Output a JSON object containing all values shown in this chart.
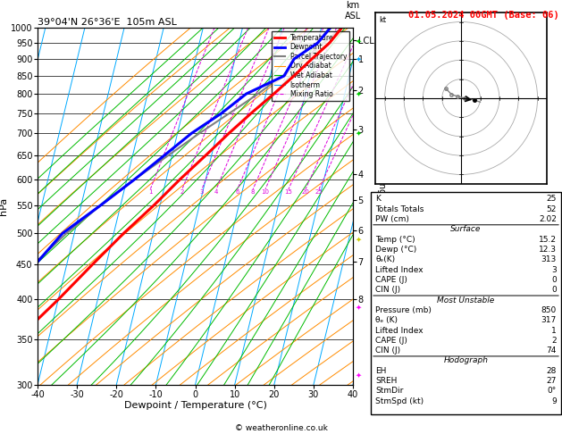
{
  "title_left": "39°04'N 26°36'E  105m ASL",
  "title_right": "01.05.2024 00GMT (Base: 06)",
  "xlabel": "Dewpoint / Temperature (°C)",
  "pressure_levels": [
    300,
    350,
    400,
    450,
    500,
    550,
    600,
    650,
    700,
    750,
    800,
    850,
    900,
    950,
    1000
  ],
  "temp_data": {
    "pressure": [
      1000,
      950,
      900,
      850,
      800,
      750,
      700,
      650,
      600,
      550,
      500,
      450,
      400,
      350,
      300
    ],
    "temperature": [
      15.2,
      13.0,
      9.5,
      6.0,
      2.0,
      -2.5,
      -7.0,
      -11.5,
      -16.5,
      -21.5,
      -27.5,
      -33.5,
      -40.0,
      -48.0,
      -53.0
    ]
  },
  "dewp_data": {
    "pressure": [
      1000,
      950,
      900,
      850,
      800,
      750,
      700,
      650,
      600,
      550,
      500,
      450,
      400,
      350,
      300
    ],
    "dewpoint": [
      12.3,
      10.0,
      5.0,
      3.5,
      -5.0,
      -10.0,
      -16.5,
      -22.0,
      -28.0,
      -35.0,
      -43.0,
      -48.0,
      -53.0,
      -53.0,
      -53.0
    ]
  },
  "parcel_data": {
    "pressure": [
      1000,
      950,
      900,
      850,
      800,
      750,
      700,
      650,
      600,
      550,
      500,
      450,
      400,
      350,
      300
    ],
    "temperature": [
      15.2,
      11.5,
      7.5,
      3.0,
      -2.0,
      -8.0,
      -14.5,
      -21.0,
      -28.0,
      -35.0,
      -42.0,
      -48.5,
      -54.0,
      -59.0,
      -63.0
    ]
  },
  "km_labels": [
    "LCL",
    "1",
    "2",
    "3",
    "4",
    "5",
    "6",
    "7",
    "8"
  ],
  "km_pressures": [
    960,
    900,
    810,
    710,
    610,
    560,
    505,
    455,
    400
  ],
  "legend_items": [
    {
      "label": "Temperature",
      "color": "#ff0000",
      "linestyle": "-",
      "linewidth": 2.0
    },
    {
      "label": "Dewpoint",
      "color": "#0000ff",
      "linestyle": "-",
      "linewidth": 2.0
    },
    {
      "label": "Parcel Trajectory",
      "color": "#808080",
      "linestyle": "-",
      "linewidth": 1.5
    },
    {
      "label": "Dry Adiabat",
      "color": "#ff8c00",
      "linestyle": "-",
      "linewidth": 0.8
    },
    {
      "label": "Wet Adiabat",
      "color": "#00bb00",
      "linestyle": "-",
      "linewidth": 0.8
    },
    {
      "label": "Isotherm",
      "color": "#00aaff",
      "linestyle": "-",
      "linewidth": 0.8
    },
    {
      "label": "Mixing Ratio",
      "color": "#dd00dd",
      "linestyle": "--",
      "linewidth": 0.8
    }
  ],
  "table_data": {
    "K": "25",
    "Totals Totals": "52",
    "PW (cm)": "2.02",
    "Temp": "15.2",
    "Dewp": "12.3",
    "theta_e_sfc": "313",
    "LI_sfc": "3",
    "CAPE_sfc": "0",
    "CIN_sfc": "0",
    "Pressure_mu": "850",
    "theta_e_mu": "317",
    "LI_mu": "1",
    "CAPE_mu": "2",
    "CIN_mu": "74",
    "EH": "28",
    "SREH": "27",
    "StmDir": "0°",
    "StmSpd": "9"
  },
  "isotherm_color": "#00aaff",
  "dry_adiabat_color": "#ff8c00",
  "wet_adiabat_color": "#00bb00",
  "mixing_ratio_color": "#dd00dd",
  "temp_color": "#ff0000",
  "dewp_color": "#0000ff",
  "parcel_color": "#808080",
  "copyright": "© weatheronline.co.uk",
  "skew": 22.0,
  "mr_values": [
    1,
    2,
    3,
    4,
    6,
    8,
    10,
    15,
    20,
    25
  ]
}
